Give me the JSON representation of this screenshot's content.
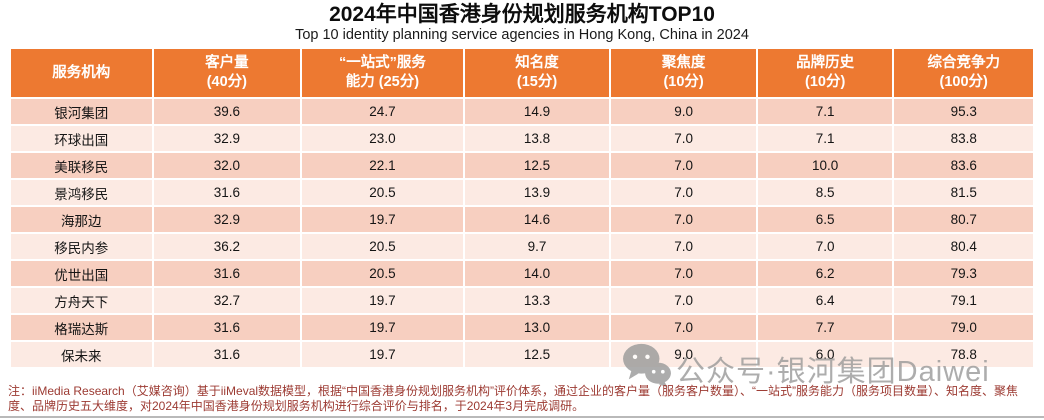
{
  "page": {
    "title": "2024年中国香港身份规划服务机构TOP10",
    "subtitle": "Top 10 identity planning service agencies in Hong Kong, China in 2024",
    "note": "注：iiMedia Research（艾媒咨询）基于iiMeval数据模型，根据“中国香港身份规划服务机构”评价体系，通过企业的客户量（服务客户数量）、“一站式”服务能力（服务项目数量）、知名度、聚焦度、品牌历史五大维度，对2024年中国香港身份规划服务机构进行综合评价与排名，于2024年3月完成调研。",
    "watermark": {
      "icon": "wechat-icon",
      "text": "公众号·银河集团Daiwei"
    }
  },
  "colors": {
    "header_bg": "#ED7931",
    "row_odd": "#F7CFC0",
    "row_even": "#FCEAE3",
    "note_color": "#9C3A32",
    "watermark_color": "#9b9b9b"
  },
  "chart_data": {
    "type": "table",
    "title": "2024年中国香港身份规划服务机构TOP10",
    "subtitle": "Top 10 identity planning service agencies in Hong Kong, China in 2024",
    "columns": [
      {
        "label": "服务机构",
        "sub": ""
      },
      {
        "label": "客户量",
        "sub": "(40分)"
      },
      {
        "label": "“一站式”服务",
        "sub": "能力 (25分)"
      },
      {
        "label": "知名度",
        "sub": "(15分)"
      },
      {
        "label": "聚焦度",
        "sub": "(10分)"
      },
      {
        "label": "品牌历史",
        "sub": "(10分)"
      },
      {
        "label": "综合竞争力",
        "sub": "(100分)"
      }
    ],
    "rows": [
      {
        "agency": "银河集团",
        "values": [
          "39.6",
          "24.7",
          "14.9",
          "9.0",
          "7.1",
          "95.3"
        ]
      },
      {
        "agency": "环球出国",
        "values": [
          "32.9",
          "23.0",
          "13.8",
          "7.0",
          "7.1",
          "83.8"
        ]
      },
      {
        "agency": "美联移民",
        "values": [
          "32.0",
          "22.1",
          "12.5",
          "7.0",
          "10.0",
          "83.6"
        ]
      },
      {
        "agency": "景鸿移民",
        "values": [
          "31.6",
          "20.5",
          "13.9",
          "7.0",
          "8.5",
          "81.5"
        ]
      },
      {
        "agency": "海那边",
        "values": [
          "32.9",
          "19.7",
          "14.6",
          "7.0",
          "6.5",
          "80.7"
        ]
      },
      {
        "agency": "移民内参",
        "values": [
          "36.2",
          "20.5",
          "9.7",
          "7.0",
          "7.0",
          "80.4"
        ]
      },
      {
        "agency": "优世出国",
        "values": [
          "31.6",
          "20.5",
          "14.0",
          "7.0",
          "6.2",
          "79.3"
        ]
      },
      {
        "agency": "方舟天下",
        "values": [
          "32.7",
          "19.7",
          "13.3",
          "7.0",
          "6.4",
          "79.1"
        ]
      },
      {
        "agency": "格瑞达斯",
        "values": [
          "31.6",
          "19.7",
          "13.0",
          "7.0",
          "7.7",
          "79.0"
        ]
      },
      {
        "agency": "保未来",
        "values": [
          "31.6",
          "19.7",
          "12.5",
          "9.0",
          "6.0",
          "78.8"
        ]
      }
    ]
  }
}
